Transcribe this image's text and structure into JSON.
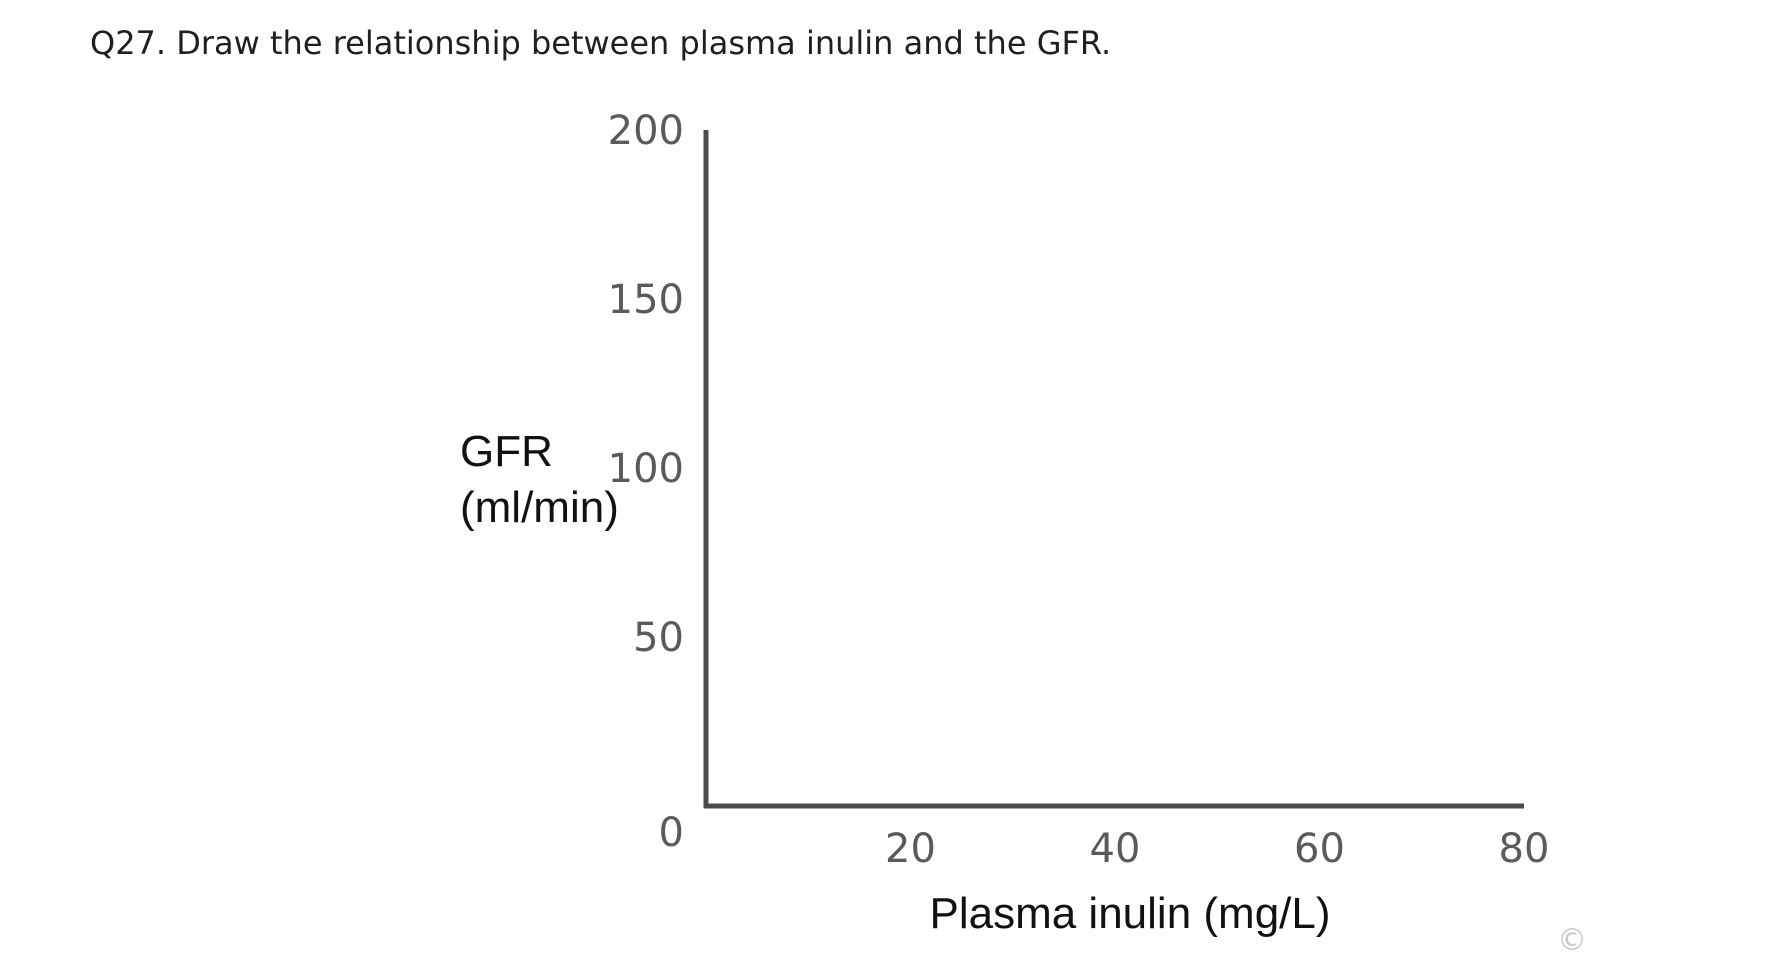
{
  "question": {
    "text": "Q27. Draw the relationship between plasma inulin and the GFR."
  },
  "chart_data": {
    "type": "line",
    "title": "",
    "xlabel": "Plasma inulin (mg/L)",
    "ylabel_line1": "GFR",
    "ylabel_line2": "(ml/min)",
    "x_ticks": [
      20,
      40,
      60,
      80
    ],
    "y_ticks": [
      0,
      50,
      100,
      150,
      200
    ],
    "xlim": [
      0,
      80
    ],
    "ylim": [
      0,
      200
    ],
    "grid": false,
    "series": []
  },
  "copyright_symbol": "©",
  "colors": {
    "axis": "#4a4a4a",
    "tick_text": "#5a5a5a",
    "title_text": "#111111"
  }
}
